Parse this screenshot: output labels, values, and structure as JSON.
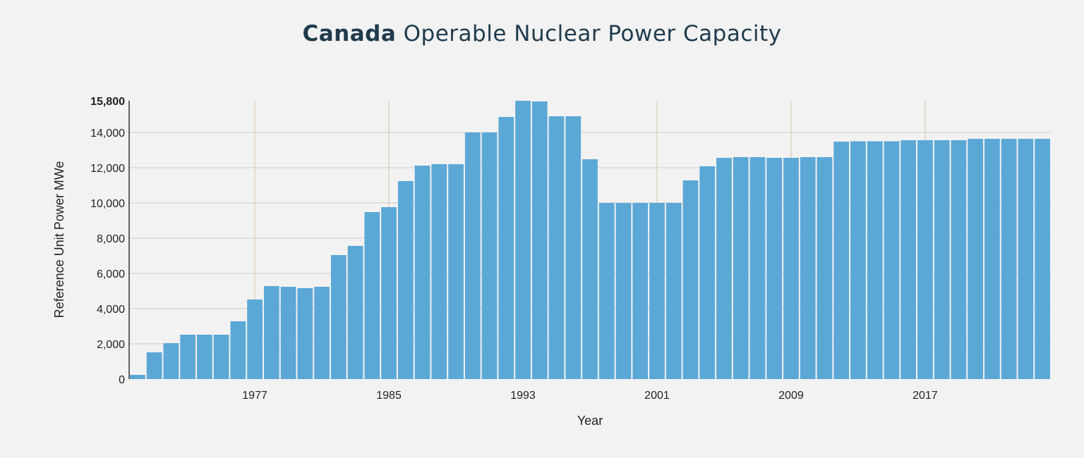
{
  "chart_data": {
    "type": "bar",
    "title_bold": "Canada",
    "title_rest": "Operable Nuclear Power Capacity",
    "xlabel": "Year",
    "ylabel": "Reference Unit Power MWe",
    "ylim": [
      0,
      15800
    ],
    "yticks": [
      "0",
      "2,000",
      "4,000",
      "6,000",
      "8,000",
      "10,000",
      "12,000",
      "14,000",
      "15,800"
    ],
    "ytick_values": [
      0,
      2000,
      4000,
      6000,
      8000,
      10000,
      12000,
      14000,
      15800
    ],
    "xticks": [
      "1977",
      "1985",
      "1993",
      "2001",
      "2009",
      "2017"
    ],
    "grid": true,
    "bar_color": "#5ba8d6",
    "categories": [
      1970,
      1971,
      1972,
      1973,
      1974,
      1975,
      1976,
      1977,
      1978,
      1979,
      1980,
      1981,
      1982,
      1983,
      1984,
      1985,
      1986,
      1987,
      1988,
      1989,
      1990,
      1991,
      1992,
      1993,
      1994,
      1995,
      1996,
      1997,
      1998,
      1999,
      2000,
      2001,
      2002,
      2003,
      2004,
      2005,
      2006,
      2007,
      2008,
      2009,
      2010,
      2011,
      2012,
      2013,
      2014,
      2015,
      2016,
      2017,
      2018,
      2019,
      2020,
      2021,
      2022,
      2023,
      2024
    ],
    "values": [
      240,
      1520,
      2040,
      2520,
      2520,
      2520,
      3280,
      4520,
      5280,
      5240,
      5160,
      5240,
      7040,
      7560,
      9480,
      9760,
      11240,
      12120,
      12200,
      12200,
      14000,
      14000,
      14880,
      15800,
      15760,
      14920,
      14920,
      12480,
      10000,
      10000,
      10000,
      10000,
      10000,
      11280,
      12080,
      12560,
      12600,
      12600,
      12560,
      12560,
      12600,
      12600,
      13480,
      13500,
      13500,
      13500,
      13560,
      13560,
      13560,
      13560,
      13640,
      13640,
      13640,
      13640,
      13640
    ]
  }
}
